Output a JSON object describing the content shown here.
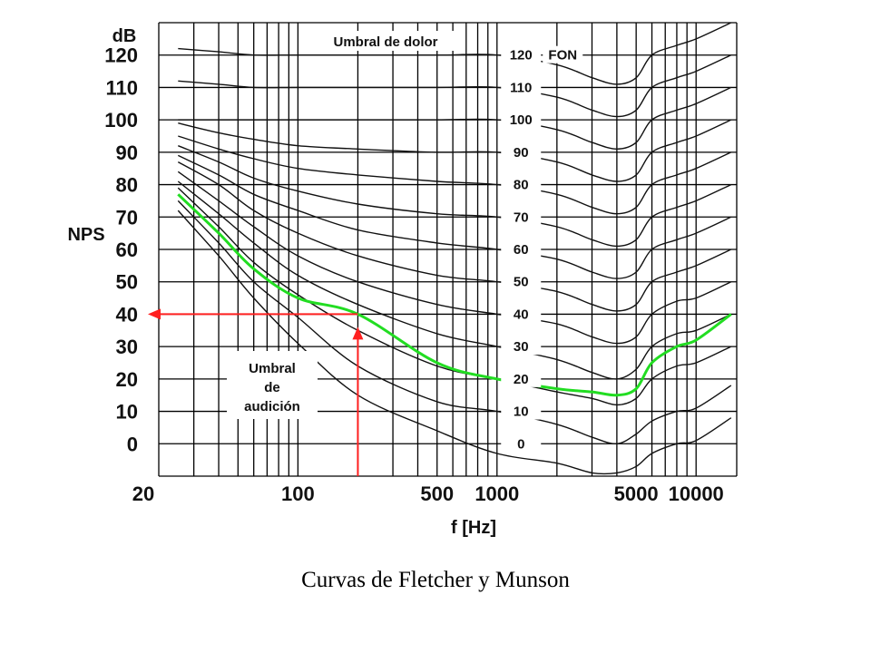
{
  "caption": "Curvas de Fletcher y Munson",
  "chart_data": {
    "type": "line",
    "title": "",
    "xlabel": "f [Hz]",
    "ylabel": "NPS",
    "yunit": "dB",
    "x_scale": "log",
    "xlim": [
      20,
      16000
    ],
    "ylim": [
      -10,
      130
    ],
    "x_ticks": [
      20,
      100,
      500,
      1000,
      5000,
      10000
    ],
    "x_tick_labels": [
      "20",
      "100",
      "500",
      "1000",
      "5000",
      "10000"
    ],
    "y_ticks": [
      0,
      10,
      20,
      30,
      40,
      50,
      60,
      70,
      80,
      90,
      100,
      110,
      120
    ],
    "y_tick_labels": [
      "0",
      "10",
      "20",
      "30",
      "40",
      "50",
      "60",
      "70",
      "80",
      "90",
      "100",
      "110",
      "120"
    ],
    "grid": true,
    "fon_unit_label": "FON",
    "series": [
      {
        "name": "0",
        "x": [
          25,
          40,
          60,
          100,
          200,
          500,
          1000,
          2000,
          3000,
          4000,
          5000,
          6000,
          8000,
          10000,
          15000
        ],
        "y": [
          72,
          58,
          45,
          31,
          15,
          4,
          -3,
          -6,
          -9,
          -9,
          -7,
          -3,
          0,
          1,
          8
        ]
      },
      {
        "name": "10",
        "x": [
          25,
          40,
          60,
          100,
          200,
          500,
          1000,
          2000,
          3000,
          4000,
          5000,
          6000,
          8000,
          10000,
          15000
        ],
        "y": [
          75,
          62,
          50,
          39,
          24,
          13,
          10,
          6,
          2,
          0,
          3,
          7,
          10,
          11,
          18
        ]
      },
      {
        "name": "20",
        "x": [
          25,
          40,
          60,
          100,
          200,
          500,
          1000,
          2000,
          3000,
          4000,
          5000,
          6000,
          8000,
          10000,
          15000
        ],
        "y": [
          79,
          67,
          56,
          46,
          35,
          24,
          20,
          16,
          14,
          12,
          14,
          20,
          24,
          25,
          30
        ]
      },
      {
        "name": "30",
        "x": [
          25,
          40,
          60,
          100,
          200,
          500,
          1000,
          2000,
          3000,
          4000,
          5000,
          6000,
          8000,
          10000,
          15000
        ],
        "y": [
          81,
          71,
          62,
          52,
          43,
          34,
          30,
          26,
          22,
          20,
          23,
          30,
          34,
          35,
          40
        ]
      },
      {
        "name": "40",
        "x": [
          25,
          40,
          60,
          100,
          200,
          500,
          1000,
          2000,
          3000,
          4000,
          5000,
          6000,
          8000,
          10000,
          15000
        ],
        "y": [
          84,
          75,
          67,
          58,
          50,
          43,
          40,
          37,
          33,
          31,
          33,
          40,
          44,
          45,
          50
        ]
      },
      {
        "name": "50",
        "x": [
          25,
          40,
          60,
          100,
          200,
          500,
          1000,
          2000,
          3000,
          4000,
          5000,
          6000,
          8000,
          10000,
          15000
        ],
        "y": [
          87,
          80,
          72,
          65,
          58,
          52,
          50,
          47,
          43,
          41,
          43,
          50,
          53,
          55,
          60
        ]
      },
      {
        "name": "60",
        "x": [
          25,
          40,
          60,
          100,
          200,
          500,
          1000,
          2000,
          3000,
          4000,
          5000,
          6000,
          8000,
          10000,
          15000
        ],
        "y": [
          89,
          83,
          77,
          72,
          66,
          62,
          60,
          57,
          53,
          51,
          53,
          60,
          63,
          65,
          70
        ]
      },
      {
        "name": "70",
        "x": [
          25,
          40,
          60,
          100,
          200,
          500,
          1000,
          2000,
          3000,
          4000,
          5000,
          6000,
          8000,
          10000,
          15000
        ],
        "y": [
          92,
          87,
          82,
          78,
          74,
          71,
          70,
          67,
          63,
          61,
          63,
          70,
          73,
          75,
          80
        ]
      },
      {
        "name": "80",
        "x": [
          25,
          40,
          60,
          100,
          200,
          500,
          1000,
          2000,
          3000,
          4000,
          5000,
          6000,
          8000,
          10000,
          15000
        ],
        "y": [
          95,
          91,
          88,
          85,
          83,
          81,
          80,
          77,
          73,
          71,
          73,
          80,
          83,
          85,
          90
        ]
      },
      {
        "name": "90",
        "x": [
          25,
          40,
          60,
          100,
          200,
          500,
          1000,
          2000,
          3000,
          4000,
          5000,
          6000,
          8000,
          10000,
          15000
        ],
        "y": [
          99,
          96,
          94,
          92,
          91,
          90,
          90,
          87,
          83,
          81,
          83,
          90,
          93,
          95,
          100
        ]
      },
      {
        "name": "100",
        "x": [
          25,
          40,
          60,
          100,
          200,
          500,
          1000,
          2000,
          3000,
          4000,
          5000,
          6000,
          8000,
          10000,
          15000
        ],
        "y": [
          100,
          100,
          100,
          100,
          100,
          100,
          100,
          97,
          93,
          91,
          93,
          100,
          103,
          105,
          110
        ]
      },
      {
        "name": "110",
        "x": [
          25,
          40,
          60,
          100,
          200,
          500,
          1000,
          2000,
          3000,
          4000,
          5000,
          6000,
          8000,
          10000,
          15000
        ],
        "y": [
          112,
          111,
          110,
          110,
          110,
          110,
          110,
          107,
          103,
          101,
          103,
          110,
          113,
          115,
          120
        ]
      },
      {
        "name": "120",
        "x": [
          25,
          40,
          60,
          100,
          200,
          500,
          1000,
          2000,
          3000,
          4000,
          5000,
          6000,
          8000,
          10000,
          15000
        ],
        "y": [
          122,
          121,
          120,
          120,
          120,
          120,
          120,
          117,
          113,
          111,
          113,
          120,
          123,
          125,
          130
        ]
      }
    ],
    "highlight": {
      "color": "#22dd22",
      "x": [
        25,
        40,
        60,
        100,
        200,
        500,
        1000,
        2000,
        3000,
        4000,
        5000,
        6000,
        8000,
        10000,
        15000
      ],
      "y": [
        77,
        65,
        54,
        45,
        40,
        25,
        20,
        17,
        16,
        15,
        17,
        25,
        30,
        32,
        40
      ]
    },
    "annotations": {
      "pain_threshold": "Umbral de dolor",
      "hearing_threshold": [
        "Umbral",
        "de",
        "audición"
      ],
      "marker_color": "#ff2020",
      "marker_x": 200,
      "marker_y": 40
    }
  }
}
